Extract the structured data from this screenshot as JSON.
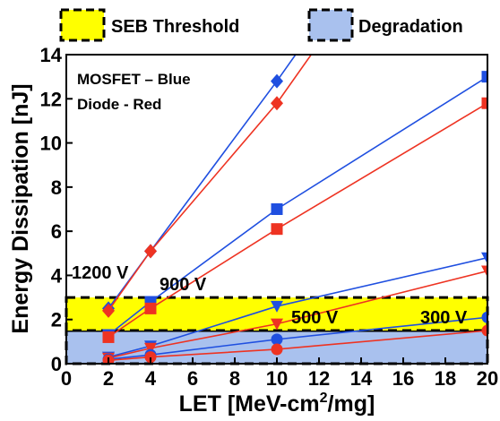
{
  "chart_data": {
    "type": "line",
    "xlabel": "LET [MeV-cm²/mg]",
    "xlabel_main": "LET [MeV-cm",
    "xlabel_sup": "2",
    "xlabel_tail": "/mg]",
    "ylabel": "Energy Dissipation [nJ]",
    "xlim": [
      0,
      20
    ],
    "ylim": [
      0,
      14
    ],
    "x_ticks": [
      "0",
      "2",
      "4",
      "6",
      "8",
      "10",
      "12",
      "14",
      "16",
      "18",
      "20"
    ],
    "y_ticks": [
      "0",
      "2",
      "4",
      "6",
      "8",
      "10",
      "12",
      "14"
    ],
    "legend": {
      "seb_threshold": "SEB Threshold",
      "degradation": "Degradation"
    },
    "inset_labels": {
      "mosfet": "MOSFET – Blue",
      "diode": "Diode - Red"
    },
    "bands": [
      {
        "name": "SEB Threshold",
        "y": [
          1.5,
          3.0
        ],
        "color": "#ffff00"
      },
      {
        "name": "Degradation",
        "y": [
          0,
          1.5
        ],
        "color": "#a9c1ee"
      }
    ],
    "voltage_labels": [
      "1200 V",
      "900 V",
      "500 V",
      "300 V"
    ],
    "colors": {
      "mosfet": "#1f4fe0",
      "diode": "#ee3322"
    },
    "series": [
      {
        "device": "MOSFET",
        "voltage": "1200 V",
        "marker": "diamond",
        "x": [
          2,
          4,
          10,
          12
        ],
        "y": [
          2.5,
          5.1,
          12.8,
          15.5
        ]
      },
      {
        "device": "Diode",
        "voltage": "1200 V",
        "marker": "diamond",
        "x": [
          2,
          4,
          10,
          12
        ],
        "y": [
          2.4,
          5.1,
          11.8,
          14.5
        ]
      },
      {
        "device": "MOSFET",
        "voltage": "900 V",
        "marker": "square",
        "x": [
          2,
          4,
          10,
          20
        ],
        "y": [
          1.3,
          2.8,
          7.0,
          13.0
        ]
      },
      {
        "device": "Diode",
        "voltage": "900 V",
        "marker": "square",
        "x": [
          2,
          4,
          10,
          20
        ],
        "y": [
          1.2,
          2.5,
          6.1,
          11.8
        ]
      },
      {
        "device": "MOSFET",
        "voltage": "500 V",
        "marker": "triangle-down",
        "x": [
          2,
          4,
          10,
          20
        ],
        "y": [
          0.3,
          0.8,
          2.6,
          4.8
        ]
      },
      {
        "device": "Diode",
        "voltage": "500 V",
        "marker": "triangle-down",
        "x": [
          2,
          4,
          10,
          20
        ],
        "y": [
          0.25,
          0.7,
          1.8,
          4.2
        ]
      },
      {
        "device": "MOSFET",
        "voltage": "300 V",
        "marker": "circle",
        "x": [
          2,
          4,
          10,
          20
        ],
        "y": [
          0.2,
          0.4,
          1.1,
          2.1
        ]
      },
      {
        "device": "Diode",
        "voltage": "300 V",
        "marker": "circle",
        "x": [
          2,
          4,
          10,
          20
        ],
        "y": [
          0.15,
          0.3,
          0.65,
          1.5
        ]
      }
    ]
  }
}
